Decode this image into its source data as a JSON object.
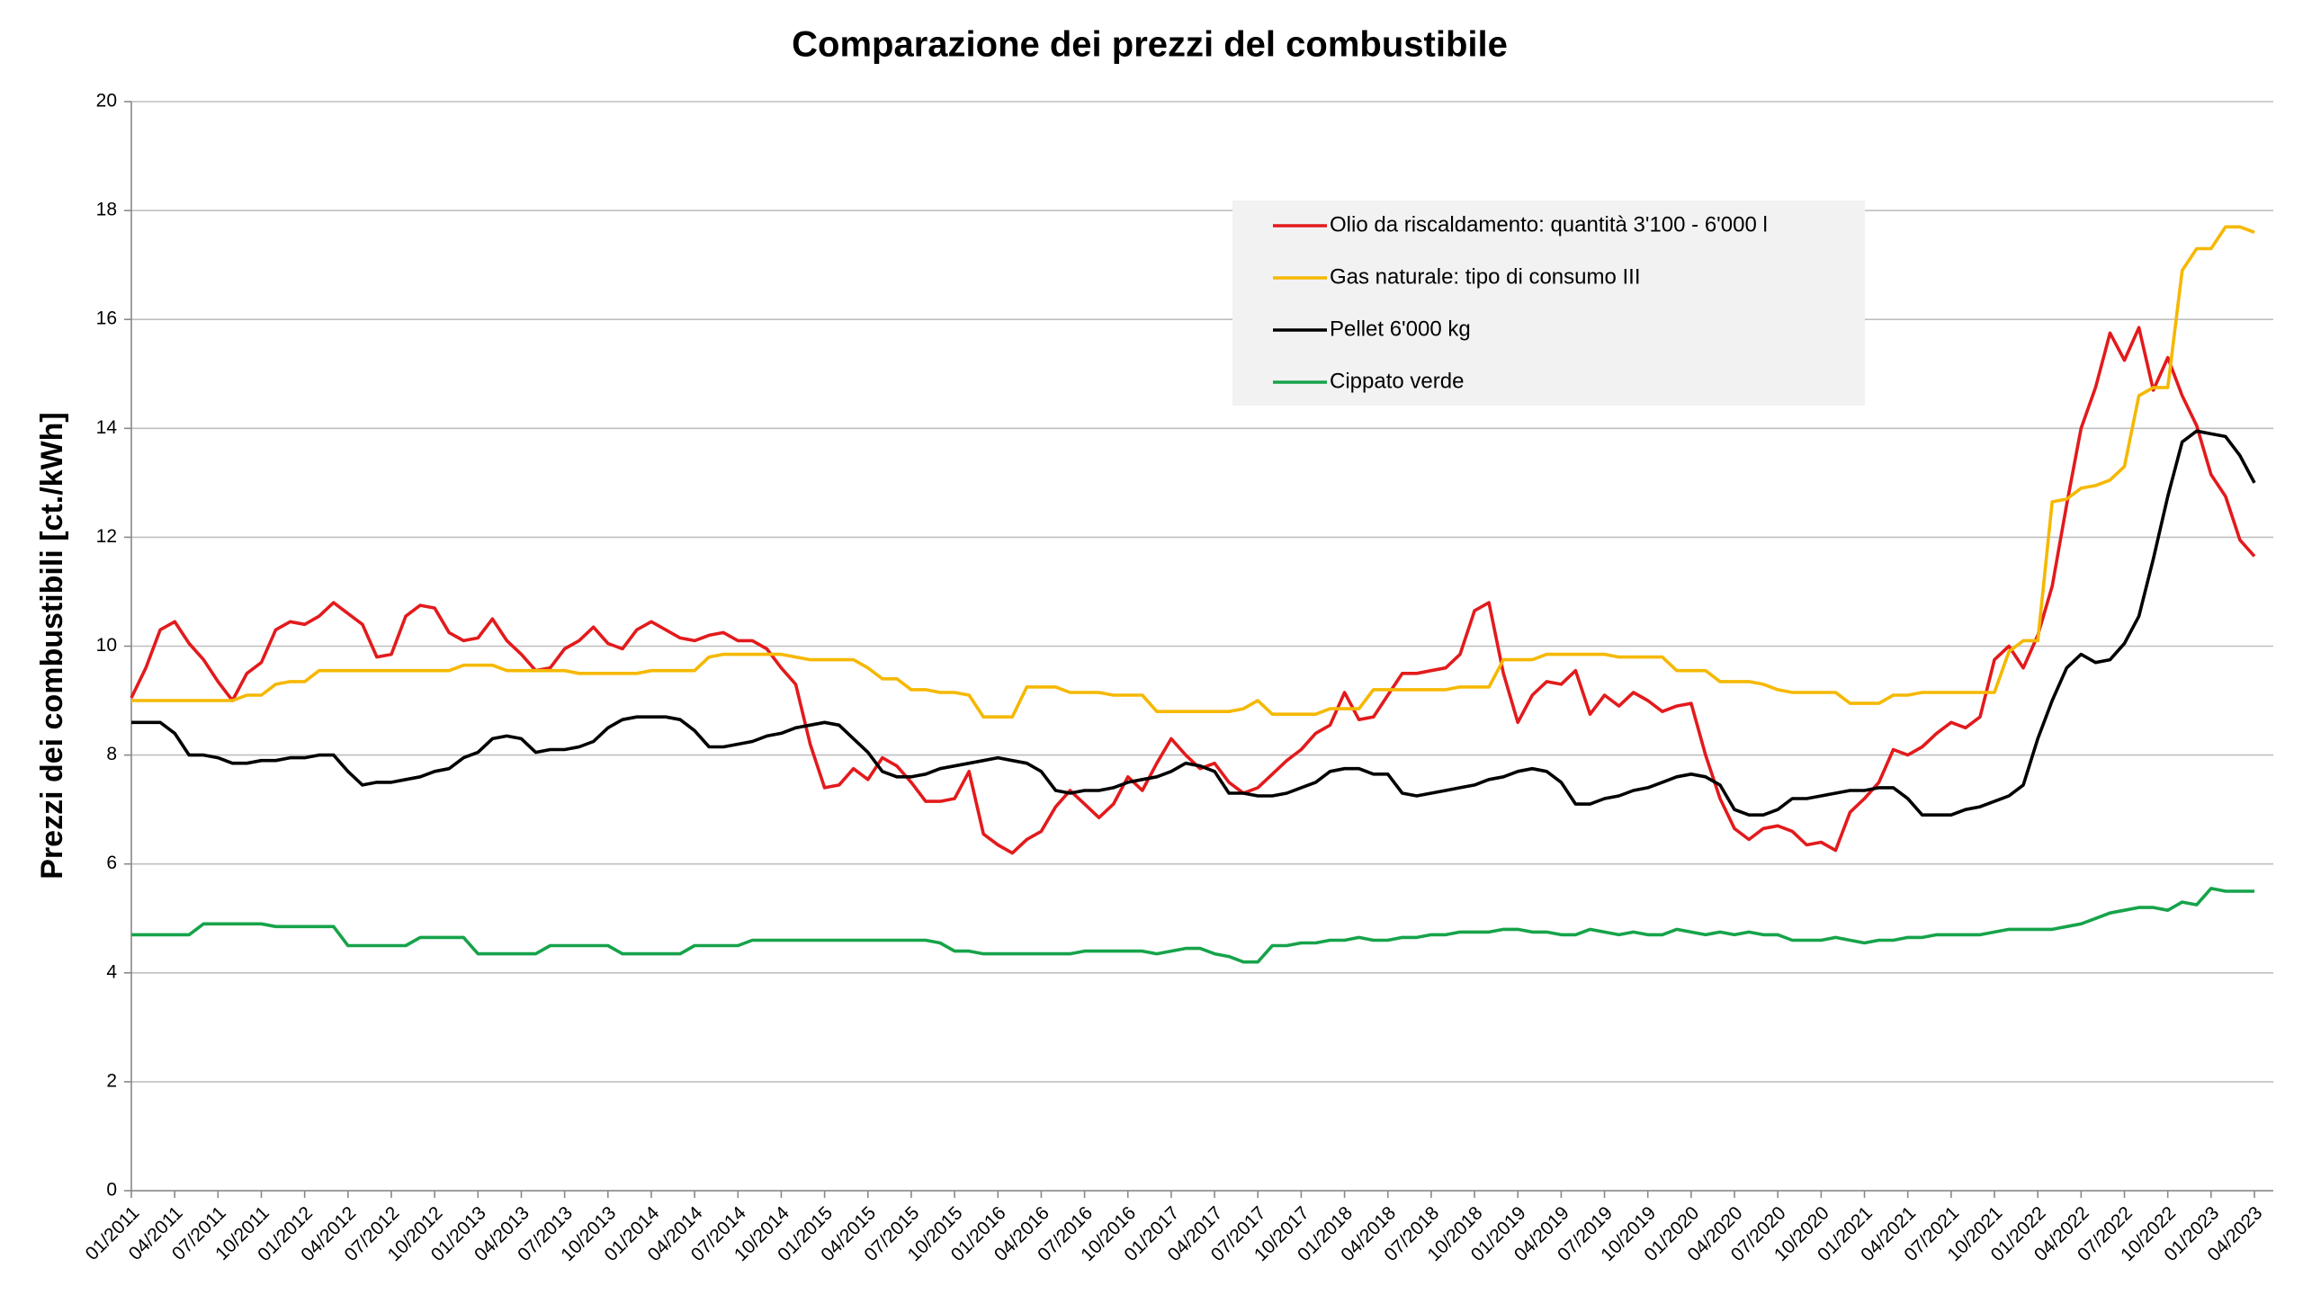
{
  "chart_data": {
    "type": "line",
    "title": "Comparazione dei prezzi del combustibile",
    "ylabel": "Prezzi dei combustibili [ct./kWh]",
    "ylim": [
      0,
      20
    ],
    "yticks": [
      0,
      2,
      4,
      6,
      8,
      10,
      12,
      14,
      16,
      18,
      20
    ],
    "grid": true,
    "legend": "top-right",
    "categories": [
      "01/2011",
      null,
      null,
      "04/2011",
      null,
      null,
      "07/2011",
      null,
      null,
      "10/2011",
      null,
      null,
      "01/2012",
      null,
      null,
      "04/2012",
      null,
      null,
      "07/2012",
      null,
      null,
      "10/2012",
      null,
      null,
      "01/2013",
      null,
      null,
      "04/2013",
      null,
      null,
      "07/2013",
      null,
      null,
      "10/2013",
      null,
      null,
      "01/2014",
      null,
      null,
      "04/2014",
      null,
      null,
      "07/2014",
      null,
      null,
      "10/2014",
      null,
      null,
      "01/2015",
      null,
      null,
      "04/2015",
      null,
      null,
      "07/2015",
      null,
      null,
      "10/2015",
      null,
      null,
      "01/2016",
      null,
      null,
      "04/2016",
      null,
      null,
      "07/2016",
      null,
      null,
      "10/2016",
      null,
      null,
      "01/2017",
      null,
      null,
      "04/2017",
      null,
      null,
      "07/2017",
      null,
      null,
      "10/2017",
      null,
      null,
      "01/2018",
      null,
      null,
      "04/2018",
      null,
      null,
      "07/2018",
      null,
      null,
      "10/2018",
      null,
      null,
      "01/2019",
      null,
      null,
      "04/2019",
      null,
      null,
      "07/2019",
      null,
      null,
      "10/2019",
      null,
      null,
      "01/2020",
      null,
      null,
      "04/2020",
      null,
      null,
      "07/2020",
      null,
      null,
      "10/2020",
      null,
      null,
      "01/2021",
      null,
      null,
      "04/2021",
      null,
      null,
      "07/2021",
      null,
      null,
      "10/2021",
      null,
      null,
      "01/2022",
      null,
      null,
      "04/2022",
      null,
      null,
      "07/2022",
      null,
      null,
      "10/2022",
      null,
      null,
      "01/2023",
      null,
      null,
      "04/2023"
    ],
    "series": [
      {
        "name": "Olio da riscaldamento: quantità 3'100 - 6'000 l",
        "color": "#e31a1c",
        "values": [
          9.05,
          9.6,
          10.3,
          10.45,
          10.05,
          9.75,
          9.35,
          9.0,
          9.5,
          9.7,
          10.3,
          10.45,
          10.4,
          10.55,
          10.8,
          10.6,
          10.4,
          9.8,
          9.85,
          10.55,
          10.75,
          10.7,
          10.25,
          10.1,
          10.15,
          10.5,
          10.1,
          9.85,
          9.55,
          9.6,
          9.95,
          10.1,
          10.35,
          10.05,
          9.95,
          10.3,
          10.45,
          10.3,
          10.15,
          10.1,
          10.2,
          10.25,
          10.1,
          10.1,
          9.95,
          9.6,
          9.3,
          8.2,
          7.4,
          7.45,
          7.75,
          7.55,
          7.95,
          7.8,
          7.5,
          7.15,
          7.15,
          7.2,
          7.7,
          6.55,
          6.35,
          6.2,
          6.45,
          6.6,
          7.05,
          7.35,
          7.1,
          6.85,
          7.1,
          7.6,
          7.35,
          7.85,
          8.3,
          8.0,
          7.75,
          7.85,
          7.5,
          7.3,
          7.4,
          7.65,
          7.9,
          8.1,
          8.4,
          8.55,
          9.15,
          8.65,
          8.7,
          9.1,
          9.5,
          9.5,
          9.55,
          9.6,
          9.85,
          10.65,
          10.8,
          9.5,
          8.6,
          9.1,
          9.35,
          9.3,
          9.55,
          8.75,
          9.1,
          8.9,
          9.15,
          9.0,
          8.8,
          8.9,
          8.95,
          8.0,
          7.2,
          6.65,
          6.45,
          6.65,
          6.7,
          6.6,
          6.35,
          6.4,
          6.25,
          6.95,
          7.2,
          7.5,
          8.1,
          8.0,
          8.15,
          8.4,
          8.6,
          8.5,
          8.7,
          9.75,
          10.0,
          9.6,
          10.2,
          11.1,
          12.6,
          14.0,
          14.75,
          15.75,
          15.25,
          15.85,
          14.7,
          15.3,
          14.6,
          14.05,
          13.15,
          12.75,
          11.95,
          11.65
        ]
      },
      {
        "name": "Gas naturale: tipo di consumo III",
        "color": "#f5b800",
        "values": [
          9.0,
          9.0,
          9.0,
          9.0,
          9.0,
          9.0,
          9.0,
          9.0,
          9.1,
          9.1,
          9.3,
          9.35,
          9.35,
          9.55,
          9.55,
          9.55,
          9.55,
          9.55,
          9.55,
          9.55,
          9.55,
          9.55,
          9.55,
          9.65,
          9.65,
          9.65,
          9.55,
          9.55,
          9.55,
          9.55,
          9.55,
          9.5,
          9.5,
          9.5,
          9.5,
          9.5,
          9.55,
          9.55,
          9.55,
          9.55,
          9.8,
          9.85,
          9.85,
          9.85,
          9.85,
          9.85,
          9.8,
          9.75,
          9.75,
          9.75,
          9.75,
          9.6,
          9.4,
          9.4,
          9.2,
          9.2,
          9.15,
          9.15,
          9.1,
          8.7,
          8.7,
          8.7,
          9.25,
          9.25,
          9.25,
          9.15,
          9.15,
          9.15,
          9.1,
          9.1,
          9.1,
          8.8,
          8.8,
          8.8,
          8.8,
          8.8,
          8.8,
          8.85,
          9.0,
          8.75,
          8.75,
          8.75,
          8.75,
          8.85,
          8.85,
          8.85,
          9.2,
          9.2,
          9.2,
          9.2,
          9.2,
          9.2,
          9.25,
          9.25,
          9.25,
          9.75,
          9.75,
          9.75,
          9.85,
          9.85,
          9.85,
          9.85,
          9.85,
          9.8,
          9.8,
          9.8,
          9.8,
          9.55,
          9.55,
          9.55,
          9.35,
          9.35,
          9.35,
          9.3,
          9.2,
          9.15,
          9.15,
          9.15,
          9.15,
          8.95,
          8.95,
          8.95,
          9.1,
          9.1,
          9.15,
          9.15,
          9.15,
          9.15,
          9.15,
          9.15,
          9.9,
          10.1,
          10.1,
          12.65,
          12.7,
          12.9,
          12.95,
          13.05,
          13.3,
          14.6,
          14.75,
          14.75,
          16.9,
          17.3,
          17.3,
          17.7,
          17.7,
          17.6
        ]
      },
      {
        "name": "Pellet 6'000 kg",
        "color": "#000000",
        "values": [
          8.6,
          8.6,
          8.6,
          8.4,
          8.0,
          8.0,
          7.95,
          7.85,
          7.85,
          7.9,
          7.9,
          7.95,
          7.95,
          8.0,
          8.0,
          7.7,
          7.45,
          7.5,
          7.5,
          7.55,
          7.6,
          7.7,
          7.75,
          7.95,
          8.05,
          8.3,
          8.35,
          8.3,
          8.05,
          8.1,
          8.1,
          8.15,
          8.25,
          8.5,
          8.65,
          8.7,
          8.7,
          8.7,
          8.65,
          8.45,
          8.15,
          8.15,
          8.2,
          8.25,
          8.35,
          8.4,
          8.5,
          8.55,
          8.6,
          8.55,
          8.3,
          8.05,
          7.7,
          7.6,
          7.6,
          7.65,
          7.75,
          7.8,
          7.85,
          7.9,
          7.95,
          7.9,
          7.85,
          7.7,
          7.35,
          7.3,
          7.35,
          7.35,
          7.4,
          7.5,
          7.55,
          7.6,
          7.7,
          7.85,
          7.8,
          7.7,
          7.3,
          7.3,
          7.25,
          7.25,
          7.3,
          7.4,
          7.5,
          7.7,
          7.75,
          7.75,
          7.65,
          7.65,
          7.3,
          7.25,
          7.3,
          7.35,
          7.4,
          7.45,
          7.55,
          7.6,
          7.7,
          7.75,
          7.7,
          7.5,
          7.1,
          7.1,
          7.2,
          7.25,
          7.35,
          7.4,
          7.5,
          7.6,
          7.65,
          7.6,
          7.45,
          7.0,
          6.9,
          6.9,
          7.0,
          7.2,
          7.2,
          7.25,
          7.3,
          7.35,
          7.35,
          7.4,
          7.4,
          7.2,
          6.9,
          6.9,
          6.9,
          7.0,
          7.05,
          7.15,
          7.25,
          7.45,
          8.3,
          9.0,
          9.6,
          9.85,
          9.7,
          9.75,
          10.05,
          10.55,
          11.6,
          12.75,
          13.75,
          13.95,
          13.9,
          13.85,
          13.5,
          13.0
        ]
      },
      {
        "name": "Cippato verde",
        "color": "#16a34a",
        "values": [
          4.7,
          4.7,
          4.7,
          4.7,
          4.7,
          4.9,
          4.9,
          4.9,
          4.9,
          4.9,
          4.85,
          4.85,
          4.85,
          4.85,
          4.85,
          4.5,
          4.5,
          4.5,
          4.5,
          4.5,
          4.65,
          4.65,
          4.65,
          4.65,
          4.35,
          4.35,
          4.35,
          4.35,
          4.35,
          4.5,
          4.5,
          4.5,
          4.5,
          4.5,
          4.35,
          4.35,
          4.35,
          4.35,
          4.35,
          4.5,
          4.5,
          4.5,
          4.5,
          4.6,
          4.6,
          4.6,
          4.6,
          4.6,
          4.6,
          4.6,
          4.6,
          4.6,
          4.6,
          4.6,
          4.6,
          4.6,
          4.55,
          4.4,
          4.4,
          4.35,
          4.35,
          4.35,
          4.35,
          4.35,
          4.35,
          4.35,
          4.4,
          4.4,
          4.4,
          4.4,
          4.4,
          4.35,
          4.4,
          4.45,
          4.45,
          4.35,
          4.3,
          4.2,
          4.2,
          4.5,
          4.5,
          4.55,
          4.55,
          4.6,
          4.6,
          4.65,
          4.6,
          4.6,
          4.65,
          4.65,
          4.7,
          4.7,
          4.75,
          4.75,
          4.75,
          4.8,
          4.8,
          4.75,
          4.75,
          4.7,
          4.7,
          4.8,
          4.75,
          4.7,
          4.75,
          4.7,
          4.7,
          4.8,
          4.75,
          4.7,
          4.75,
          4.7,
          4.75,
          4.7,
          4.7,
          4.6,
          4.6,
          4.6,
          4.65,
          4.6,
          4.55,
          4.6,
          4.6,
          4.65,
          4.65,
          4.7,
          4.7,
          4.7,
          4.7,
          4.75,
          4.8,
          4.8,
          4.8,
          4.8,
          4.85,
          4.9,
          5.0,
          5.1,
          5.15,
          5.2,
          5.2,
          5.15,
          5.3,
          5.25,
          5.55,
          5.5,
          5.5,
          5.5
        ]
      }
    ]
  }
}
